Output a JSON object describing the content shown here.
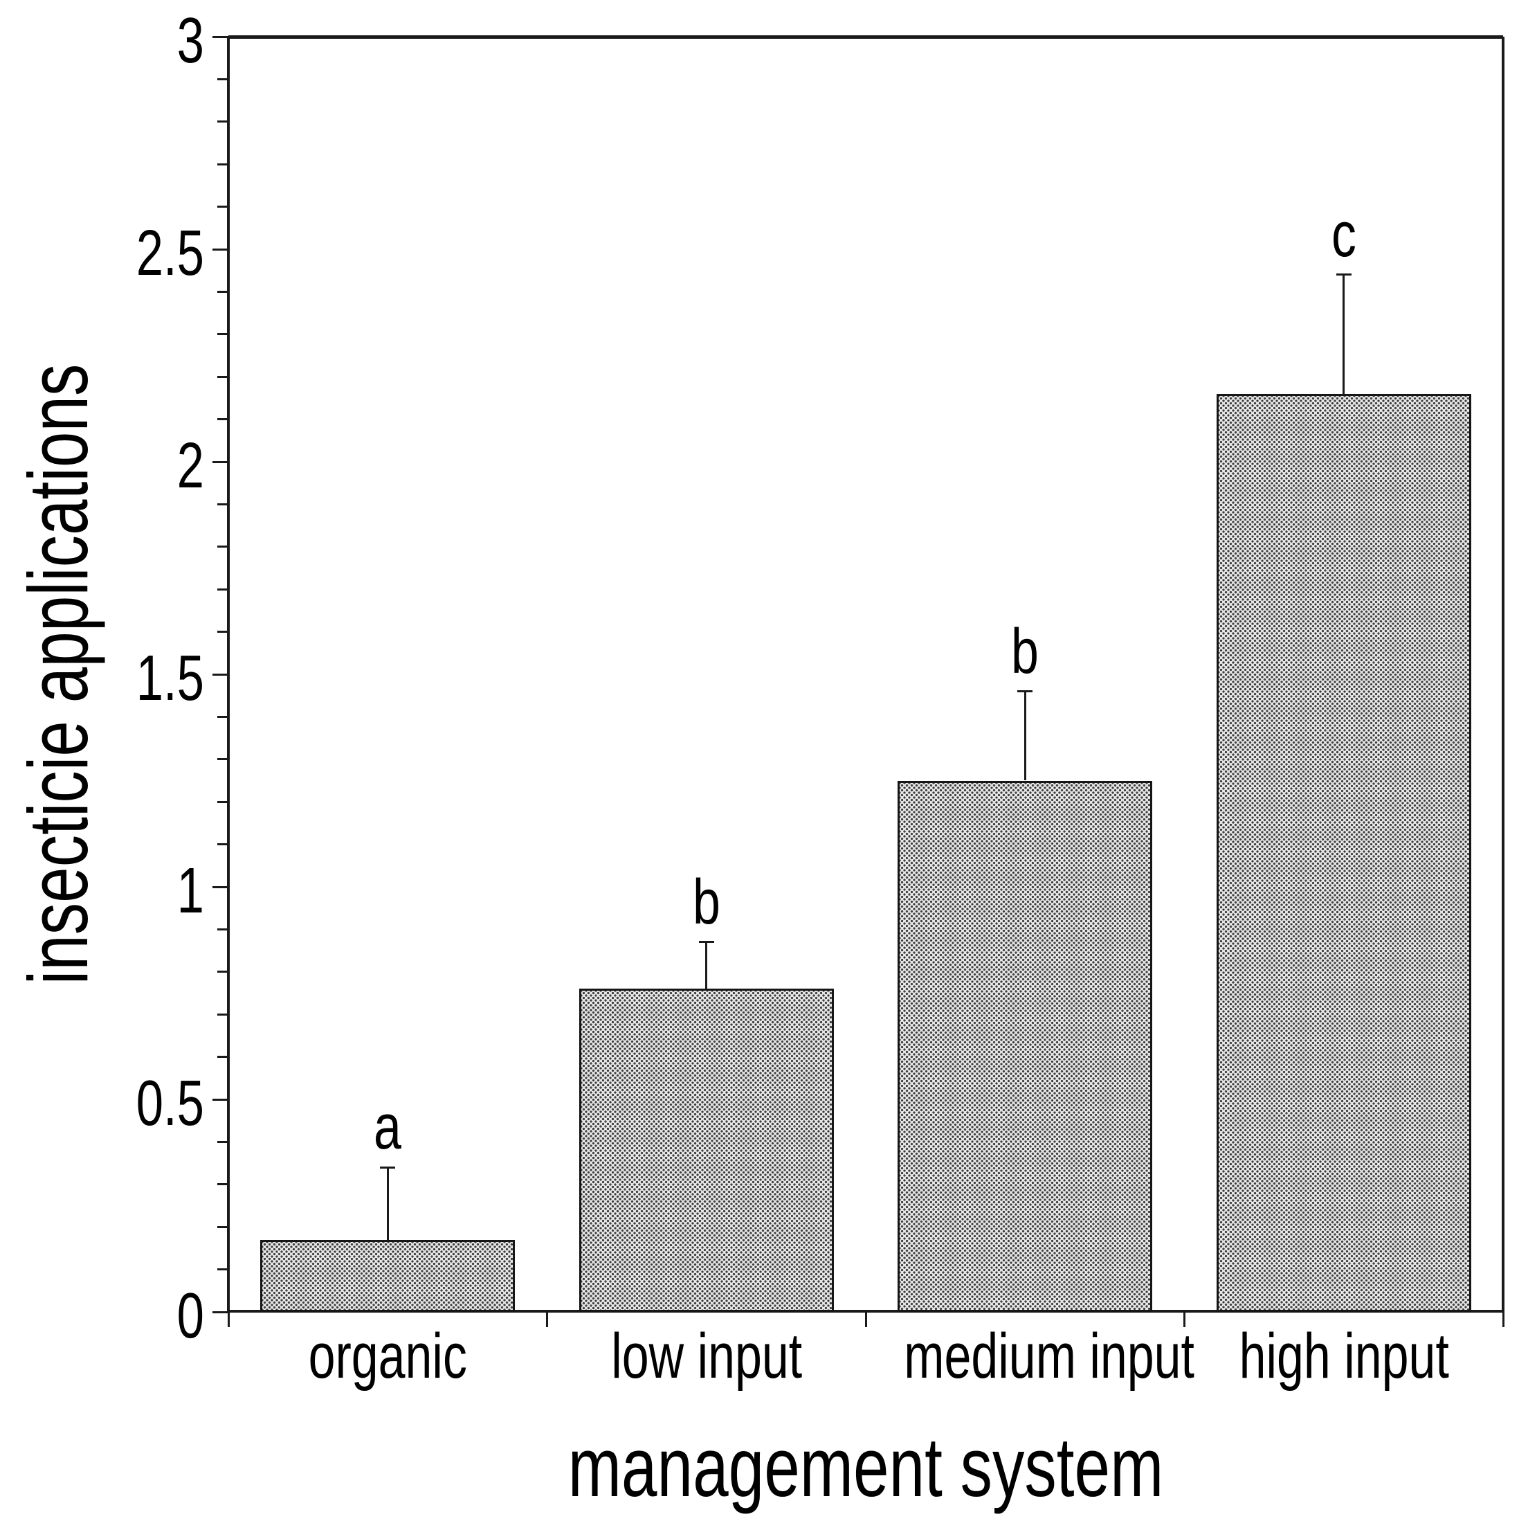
{
  "figure": {
    "background": "#ffffff",
    "text_color": "#000000"
  },
  "chart_data": {
    "type": "bar",
    "categories": [
      "organic",
      "low input",
      "medium input",
      "high input"
    ],
    "values": [
      0.17,
      0.76,
      1.25,
      2.16
    ],
    "upper_errors": [
      0.17,
      0.11,
      0.21,
      0.28
    ],
    "significance_letters": [
      "a",
      "b",
      "b",
      "c"
    ],
    "xlabel": "management system",
    "ylabel": "insecticie applications",
    "ylim": [
      0,
      3
    ],
    "ytick_major_step": 0.5,
    "ytick_minor_step": 0.1,
    "ytick_labels": [
      "0",
      "0.5",
      "1",
      "1.5",
      "2",
      "2.5",
      "3"
    ],
    "grid": "off",
    "legend": "none",
    "frame": "full",
    "axis_color": "#1a1a1a",
    "bar_border_color": "#161616",
    "bar_pattern_base": "#e9e9e9",
    "bar_pattern_dot": "#3f3f3f"
  }
}
